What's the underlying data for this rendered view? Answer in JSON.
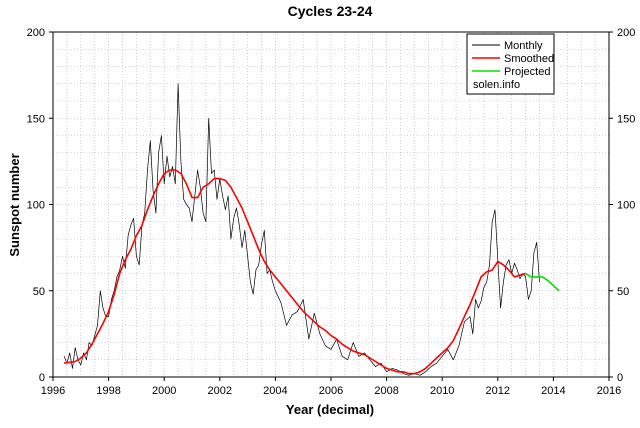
{
  "chart_data": {
    "type": "line",
    "title": "Cycles 23-24",
    "xlabel": "Year (decimal)",
    "ylabel": "Sunspot number",
    "xlim": [
      1996,
      2016
    ],
    "ylim": [
      0,
      200
    ],
    "x_ticks": [
      1996,
      1998,
      2000,
      2002,
      2004,
      2006,
      2008,
      2010,
      2012,
      2014,
      2016
    ],
    "y_ticks": [
      0,
      50,
      100,
      150,
      200
    ],
    "grid": true,
    "legend_position": "top-right",
    "legend_note": "solen.info",
    "series": [
      {
        "name": "Monthly",
        "color": "#000000",
        "x": [
          1996.4,
          1996.5,
          1996.6,
          1996.7,
          1996.8,
          1996.9,
          1997.0,
          1997.1,
          1997.2,
          1997.3,
          1997.4,
          1997.5,
          1997.6,
          1997.7,
          1997.8,
          1997.9,
          1998.0,
          1998.1,
          1998.2,
          1998.3,
          1998.4,
          1998.5,
          1998.6,
          1998.7,
          1998.8,
          1998.9,
          1999.0,
          1999.1,
          1999.2,
          1999.3,
          1999.4,
          1999.5,
          1999.6,
          1999.7,
          1999.8,
          1999.9,
          2000.0,
          2000.1,
          2000.2,
          2000.3,
          2000.4,
          2000.5,
          2000.6,
          2000.7,
          2000.8,
          2000.9,
          2001.0,
          2001.1,
          2001.2,
          2001.3,
          2001.4,
          2001.5,
          2001.6,
          2001.7,
          2001.8,
          2001.9,
          2002.0,
          2002.1,
          2002.2,
          2002.3,
          2002.4,
          2002.5,
          2002.6,
          2002.7,
          2002.8,
          2002.9,
          2003.0,
          2003.1,
          2003.2,
          2003.3,
          2003.4,
          2003.5,
          2003.6,
          2003.7,
          2003.8,
          2003.9,
          2004.0,
          2004.2,
          2004.4,
          2004.6,
          2004.8,
          2005.0,
          2005.2,
          2005.4,
          2005.6,
          2005.8,
          2006.0,
          2006.2,
          2006.4,
          2006.6,
          2006.8,
          2007.0,
          2007.2,
          2007.4,
          2007.6,
          2007.8,
          2008.0,
          2008.2,
          2008.4,
          2008.6,
          2008.8,
          2009.0,
          2009.2,
          2009.4,
          2009.6,
          2009.8,
          2010.0,
          2010.2,
          2010.4,
          2010.6,
          2010.8,
          2011.0,
          2011.1,
          2011.2,
          2011.3,
          2011.4,
          2011.5,
          2011.6,
          2011.7,
          2011.8,
          2011.9,
          2012.0,
          2012.1,
          2012.2,
          2012.3,
          2012.4,
          2012.5,
          2012.6,
          2012.7,
          2012.8,
          2012.9,
          2013.0,
          2013.1,
          2013.2,
          2013.3,
          2013.4,
          2013.5
        ],
        "values": [
          12,
          8,
          14,
          5,
          17,
          10,
          7,
          14,
          10,
          20,
          18,
          24,
          30,
          50,
          40,
          35,
          35,
          45,
          50,
          58,
          62,
          70,
          63,
          82,
          88,
          92,
          70,
          65,
          88,
          95,
          120,
          137,
          108,
          95,
          130,
          140,
          112,
          128,
          116,
          122,
          112,
          170,
          125,
          103,
          100,
          98,
          90,
          105,
          120,
          110,
          95,
          90,
          150,
          118,
          120,
          103,
          115,
          105,
          97,
          105,
          80,
          92,
          98,
          88,
          75,
          85,
          70,
          55,
          48,
          62,
          65,
          77,
          85,
          60,
          62,
          55,
          50,
          43,
          30,
          36,
          38,
          45,
          22,
          37,
          25,
          18,
          16,
          22,
          12,
          10,
          20,
          12,
          14,
          10,
          6,
          8,
          3,
          5,
          4,
          2,
          1,
          2,
          1,
          3,
          6,
          8,
          12,
          16,
          10,
          18,
          32,
          35,
          25,
          45,
          40,
          44,
          52,
          55,
          65,
          90,
          97,
          68,
          40,
          55,
          65,
          68,
          60,
          66,
          62,
          57,
          60,
          58,
          45,
          50,
          72,
          78,
          55
        ]
      },
      {
        "name": "Smoothed",
        "color": "#ff0000",
        "x": [
          1996.4,
          1996.8,
          1997.0,
          1997.2,
          1997.4,
          1997.6,
          1997.8,
          1998.0,
          1998.2,
          1998.4,
          1998.6,
          1998.8,
          1999.0,
          1999.2,
          1999.4,
          1999.6,
          1999.8,
          2000.0,
          2000.2,
          2000.4,
          2000.6,
          2000.8,
          2001.0,
          2001.2,
          2001.4,
          2001.6,
          2001.8,
          2002.0,
          2002.2,
          2002.4,
          2002.6,
          2002.8,
          2003.0,
          2003.2,
          2003.4,
          2003.6,
          2003.8,
          2004.0,
          2004.2,
          2004.4,
          2004.6,
          2004.8,
          2005.0,
          2005.2,
          2005.4,
          2005.6,
          2005.8,
          2006.0,
          2006.2,
          2006.4,
          2006.6,
          2006.8,
          2007.0,
          2007.2,
          2007.4,
          2007.6,
          2007.8,
          2008.0,
          2008.2,
          2008.4,
          2008.6,
          2008.8,
          2009.0,
          2009.2,
          2009.4,
          2009.6,
          2009.8,
          2010.0,
          2010.2,
          2010.4,
          2010.6,
          2010.8,
          2011.0,
          2011.2,
          2011.4,
          2011.6,
          2011.8,
          2012.0,
          2012.2,
          2012.4,
          2012.6,
          2012.8,
          2013.0
        ],
        "values": [
          8,
          9,
          11,
          14,
          19,
          25,
          31,
          38,
          48,
          60,
          68,
          74,
          82,
          88,
          97,
          105,
          112,
          118,
          120,
          120,
          118,
          112,
          104,
          104,
          110,
          112,
          115,
          115,
          114,
          110,
          104,
          98,
          90,
          82,
          74,
          67,
          62,
          58,
          54,
          50,
          46,
          42,
          38,
          35,
          32,
          29,
          27,
          24,
          22,
          19,
          17,
          15,
          14,
          13,
          11,
          9,
          7,
          5,
          4,
          3,
          3,
          2,
          2,
          3,
          5,
          8,
          11,
          14,
          17,
          21,
          28,
          35,
          42,
          50,
          58,
          61,
          62,
          67,
          65,
          62,
          58,
          59,
          60
        ]
      },
      {
        "name": "Projected",
        "color": "#00e000",
        "x": [
          2013.0,
          2013.2,
          2013.4,
          2013.6,
          2013.8,
          2014.0,
          2014.2
        ],
        "values": [
          60,
          58,
          58,
          58,
          56,
          53,
          50
        ]
      }
    ]
  }
}
